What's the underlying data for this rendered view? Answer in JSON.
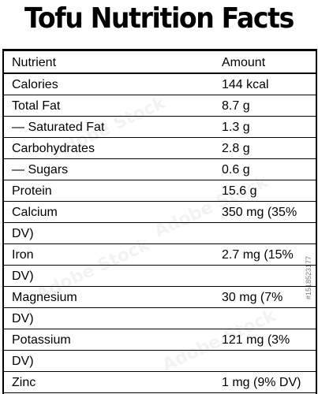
{
  "title": "Tofu Nutrition Facts",
  "table": {
    "header": {
      "nutrient": "Nutrient",
      "amount": "Amount"
    },
    "rows": [
      {
        "nutrient": "Calories",
        "amount": "144 kcal",
        "amount_wrap": ""
      },
      {
        "nutrient": "Total Fat",
        "amount": "8.7 g",
        "amount_wrap": ""
      },
      {
        "nutrient": "— Saturated Fat",
        "amount": "1.3 g",
        "amount_wrap": ""
      },
      {
        "nutrient": "Carbohydrates",
        "amount": "2.8 g",
        "amount_wrap": ""
      },
      {
        "nutrient": "— Sugars",
        "amount": "0.6 g",
        "amount_wrap": ""
      },
      {
        "nutrient": "Protein",
        "amount": "15.6 g",
        "amount_wrap": ""
      },
      {
        "nutrient": "Calcium",
        "amount": "350 mg (35%",
        "amount_wrap": "DV)"
      },
      {
        "nutrient": "Iron",
        "amount": "2.7 mg (15%",
        "amount_wrap": "DV)"
      },
      {
        "nutrient": "Magnesium",
        "amount": "30 mg (7%",
        "amount_wrap": "DV)"
      },
      {
        "nutrient": "Potassium",
        "amount": "121 mg (3%",
        "amount_wrap": "DV)"
      },
      {
        "nutrient": "Zinc",
        "amount": "1 mg (9% DV)",
        "amount_wrap": ""
      }
    ]
  },
  "watermark_text": "Adobe Stock",
  "side_id": "#1518523177"
}
